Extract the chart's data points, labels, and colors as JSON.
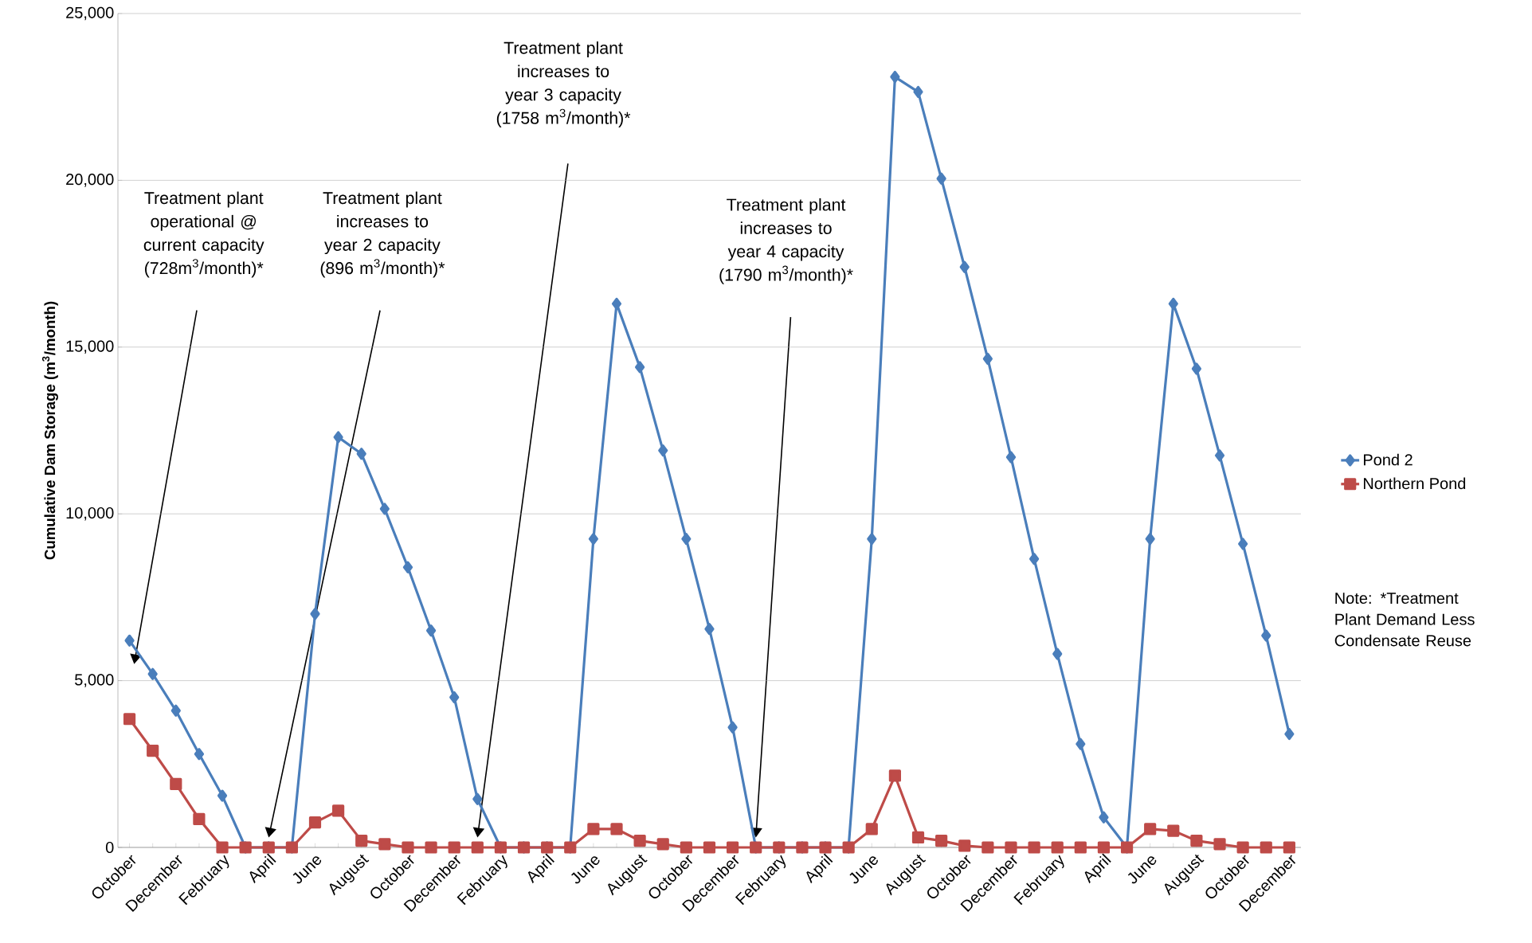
{
  "chart_data": {
    "type": "line",
    "ylabel": "Cumulative Dam Storage (m$^{3}$/month)",
    "categories": [
      "October",
      null,
      "December",
      null,
      "February",
      null,
      "April",
      null,
      "June",
      null,
      "August",
      null,
      "October",
      null,
      "December",
      null,
      "February",
      null,
      "April",
      null,
      "June",
      null,
      "August",
      null,
      "October",
      null,
      "December",
      null,
      "February",
      null,
      "April",
      null,
      "June",
      null,
      "August",
      null,
      "October",
      null,
      "December",
      null,
      "February",
      null,
      "April",
      null,
      "June",
      null,
      "August",
      null,
      "October",
      null,
      "December"
    ],
    "series": [
      {
        "name": "Pond 2",
        "color": "#4a7ebb",
        "marker": "diamond",
        "values": [
          6200,
          5200,
          4100,
          2800,
          1550,
          0,
          0,
          0,
          7000,
          12300,
          11800,
          10150,
          8400,
          6500,
          4500,
          1450,
          0,
          0,
          0,
          0,
          9250,
          16300,
          14400,
          11900,
          9250,
          6550,
          3600,
          0,
          0,
          0,
          0,
          0,
          9250,
          23100,
          22650,
          20050,
          17400,
          14650,
          11700,
          8650,
          5800,
          3100,
          900,
          0,
          9250,
          16300,
          14350,
          11750,
          9100,
          6350,
          3400
        ]
      },
      {
        "name": "Northern Pond",
        "color": "#be4b48",
        "marker": "square",
        "values": [
          3850,
          2900,
          1900,
          850,
          0,
          0,
          0,
          0,
          750,
          1100,
          200,
          100,
          0,
          0,
          0,
          0,
          0,
          0,
          0,
          0,
          550,
          550,
          200,
          100,
          0,
          0,
          0,
          0,
          0,
          0,
          0,
          0,
          550,
          2150,
          300,
          200,
          50,
          0,
          0,
          0,
          0,
          0,
          0,
          0,
          550,
          500,
          200,
          100,
          0,
          0,
          0
        ]
      }
    ],
    "ylim": [
      0,
      25000
    ],
    "yticks": [
      0,
      {
        "value": 5000,
        "label": "5,000"
      },
      {
        "value": 10000,
        "label": "10,000"
      },
      {
        "value": 15000,
        "label": "15,000"
      },
      {
        "value": 20000,
        "label": "20,000"
      },
      {
        "value": 25000,
        "label": "25,000"
      }
    ],
    "grid": "y",
    "legend": "right",
    "line_style": "solid",
    "annotations": [
      "Treatment plant operational @ current capacity (728m$^{3}$/month)*",
      "Treatment plant increases to year 2 capacity (896 m$^{3}$/month)*",
      "Treatment plant increases to year 3 capacity (1758 m$^{3}$/month)*",
      "Treatment plant increases to year 4 capacity (1790 m$^{3}$/month)*",
      "Note: *Treatment Plant Demand Less Condensate Reuse"
    ]
  }
}
